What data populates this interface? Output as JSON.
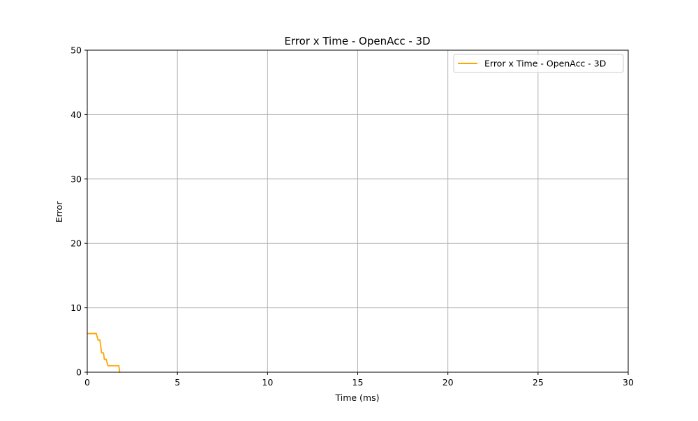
{
  "chart_data": {
    "type": "line",
    "title": "Error x Time - OpenAcc - 3D",
    "xlabel": "Time (ms)",
    "ylabel": "Error",
    "xlim": [
      0,
      30
    ],
    "ylim": [
      0,
      50
    ],
    "xticks": [
      0,
      5,
      10,
      15,
      20,
      25,
      30
    ],
    "yticks": [
      0,
      10,
      20,
      30,
      40,
      50
    ],
    "xtick_labels": [
      "0",
      "5",
      "10",
      "15",
      "20",
      "25",
      "30"
    ],
    "ytick_labels": [
      "0",
      "10",
      "20",
      "30",
      "40",
      "50"
    ],
    "grid": true,
    "legend_position": "top-right",
    "series": [
      {
        "name": "Error x Time - OpenAcc - 3D",
        "color": "#ffa500",
        "x": [
          0.05,
          0.5,
          0.55,
          0.6,
          0.7,
          0.75,
          0.8,
          0.9,
          0.95,
          1.0,
          1.05,
          1.15,
          1.2,
          1.75,
          1.8
        ],
        "y": [
          6,
          6,
          5.5,
          5,
          5,
          4,
          3,
          3,
          2,
          2,
          2,
          1,
          1,
          1,
          0
        ]
      }
    ]
  }
}
